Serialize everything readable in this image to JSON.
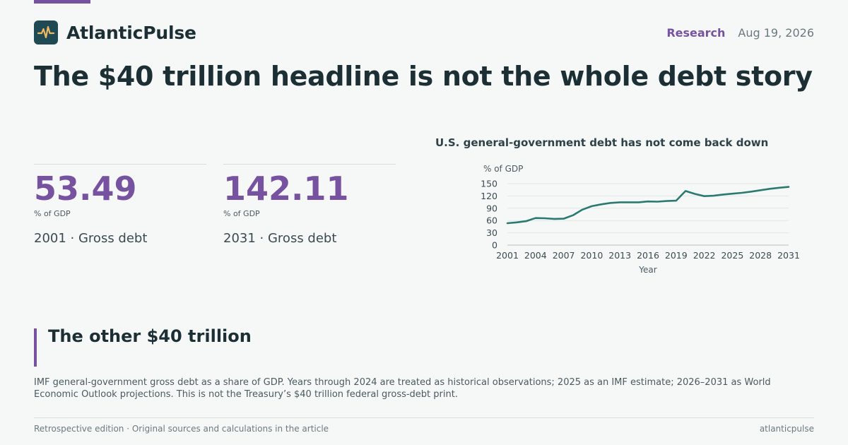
{
  "brand": {
    "name": "AtlanticPulse",
    "logo_icon": "pulse-icon",
    "accent_color": "#7752a1",
    "logo_color": "#f0b860"
  },
  "header": {
    "section": "Research",
    "date": "Aug 19, 2026"
  },
  "headline": "The $40 trillion headline is not the whole debt story",
  "stats": [
    {
      "value": "53.49",
      "unit": "% of GDP",
      "caption": "2001 · Gross debt"
    },
    {
      "value": "142.11",
      "unit": "% of GDP",
      "caption": "2031 · Gross debt"
    }
  ],
  "chart": {
    "title": "U.S. general-government debt has not come back down"
  },
  "chart_data": {
    "type": "line",
    "title": "U.S. general-government debt has not come back down",
    "xlabel": "Year",
    "ylabel": "% of GDP",
    "xlim": [
      2001,
      2031
    ],
    "ylim": [
      0,
      150
    ],
    "x_ticks": [
      2001,
      2004,
      2007,
      2010,
      2013,
      2016,
      2019,
      2022,
      2025,
      2028,
      2031
    ],
    "y_ticks": [
      0,
      30,
      60,
      90,
      120,
      150
    ],
    "grid": true,
    "line_color": "#2a7a70",
    "series": [
      {
        "x": [
          2001,
          2002,
          2003,
          2004,
          2005,
          2006,
          2007,
          2008,
          2009,
          2010,
          2011,
          2012,
          2013,
          2014,
          2015,
          2016,
          2017,
          2018,
          2019,
          2020,
          2021,
          2022,
          2023,
          2024,
          2025,
          2026,
          2027,
          2028,
          2029,
          2030,
          2031
        ],
        "values": [
          53.49,
          55.5,
          58.5,
          66,
          65.5,
          64,
          64.5,
          73,
          86.5,
          95,
          99.5,
          103,
          104.5,
          104.5,
          104.5,
          106.5,
          106,
          107.5,
          108.5,
          132,
          125,
          119.5,
          120.5,
          123.5,
          125.5,
          127.5,
          130.5,
          134,
          137.5,
          140,
          142.11
        ]
      }
    ]
  },
  "callout": {
    "title": "The other $40 trillion"
  },
  "note": "IMF general-government gross debt as a share of GDP. Years through 2024 are treated as historical observations; 2025 as an IMF estimate; 2026–2031 as World Economic Outlook projections. This is not the Treasury’s $40 trillion federal gross-debt print.",
  "footer": {
    "left": "Retrospective edition · Original sources and calculations in the article",
    "right": "atlanticpulse"
  }
}
